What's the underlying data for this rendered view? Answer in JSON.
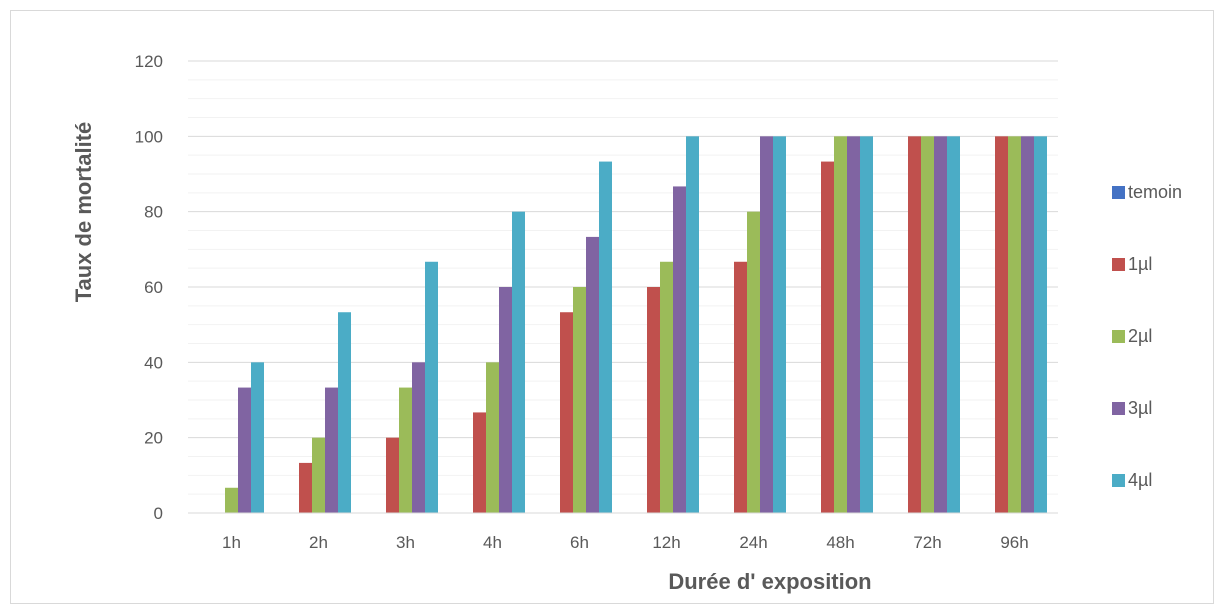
{
  "chart_data": {
    "type": "bar",
    "title": "",
    "xlabel": "Durée d' exposition",
    "ylabel": "Taux de mortalité",
    "ylim": [
      0,
      120
    ],
    "ytick_step": 20,
    "minor_grid_step": 5,
    "grid": true,
    "legend_position": "right",
    "categories": [
      "1h",
      "2h",
      "3h",
      "4h",
      "6h",
      "12h",
      "24h",
      "48h",
      "72h",
      "96h"
    ],
    "series": [
      {
        "name": "temoin",
        "color": "#4472C4",
        "values": [
          0,
          0,
          0,
          0,
          0,
          0,
          0,
          0,
          0,
          0
        ]
      },
      {
        "name": "1µl",
        "color": "#C0504D",
        "values": [
          0,
          13.3,
          20,
          26.7,
          53.3,
          60,
          66.7,
          93.3,
          100,
          100
        ]
      },
      {
        "name": "2µl",
        "color": "#9BBB59",
        "values": [
          6.7,
          20,
          33.3,
          40,
          60,
          66.7,
          80,
          100,
          100,
          100
        ]
      },
      {
        "name": "3µl",
        "color": "#8064A2",
        "values": [
          33.3,
          33.3,
          40,
          60,
          73.3,
          86.7,
          100,
          100,
          100,
          100
        ]
      },
      {
        "name": "4µl",
        "color": "#4BACC6",
        "values": [
          40,
          53.3,
          66.7,
          80,
          93.3,
          100,
          100,
          100,
          100,
          100
        ]
      }
    ]
  }
}
